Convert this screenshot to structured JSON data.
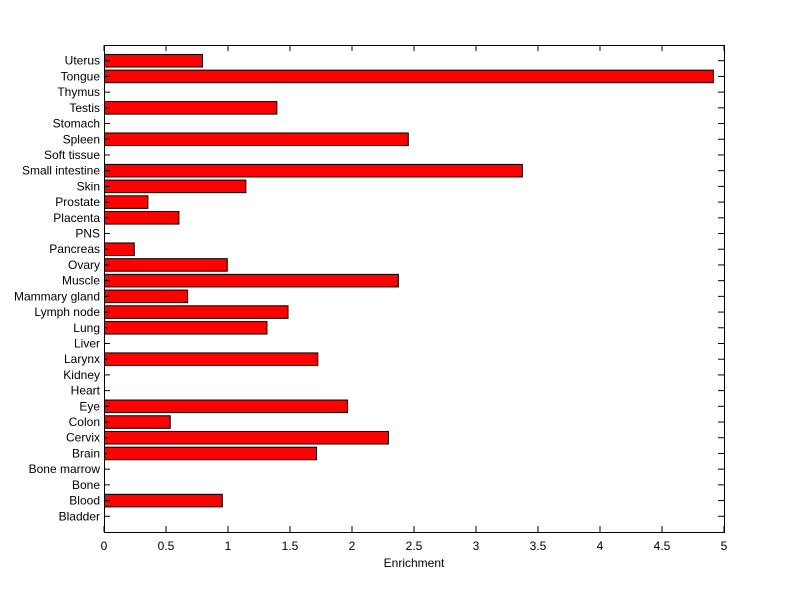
{
  "chart_data": {
    "type": "bar",
    "orientation": "horizontal",
    "title": "",
    "xlabel": "Enrichment",
    "ylabel": "",
    "xlim": [
      0,
      5
    ],
    "xticks": [
      0,
      0.5,
      1,
      1.5,
      2,
      2.5,
      3,
      3.5,
      4,
      4.5,
      5
    ],
    "xtick_labels": [
      "0",
      "0.5",
      "1",
      "1.5",
      "2",
      "2.5",
      "3",
      "3.5",
      "4",
      "4.5",
      "5"
    ],
    "grid": false,
    "legend": "none",
    "bar_color": "#ff0000",
    "edge_color": "#000000",
    "categories": [
      "Uterus",
      "Tongue",
      "Thymus",
      "Testis",
      "Stomach",
      "Spleen",
      "Soft tissue",
      "Small intestine",
      "Skin",
      "Prostate",
      "Placenta",
      "PNS",
      "Pancreas",
      "Ovary",
      "Muscle",
      "Mammary gland",
      "Lymph node",
      "Lung",
      "Liver",
      "Larynx",
      "Kidney",
      "Heart",
      "Eye",
      "Colon",
      "Cervix",
      "Brain",
      "Bone marrow",
      "Bone",
      "Blood",
      "Bladder"
    ],
    "values": [
      0.79,
      4.91,
      0,
      1.39,
      0,
      2.45,
      0,
      3.37,
      1.14,
      0.35,
      0.6,
      0,
      0.24,
      0.99,
      2.37,
      0.67,
      1.48,
      1.31,
      0,
      1.72,
      0,
      0,
      1.96,
      0.53,
      2.29,
      1.71,
      0,
      0,
      0.95,
      0
    ]
  }
}
